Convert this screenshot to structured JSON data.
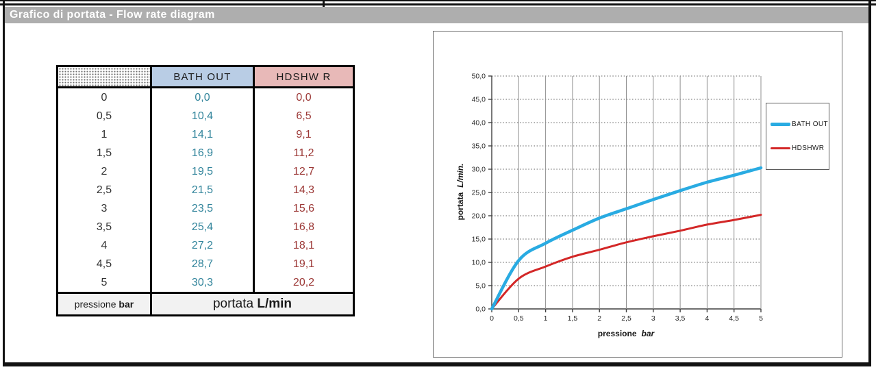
{
  "header": {
    "title": "Grafico di portata - Flow rate diagram"
  },
  "table": {
    "col_headers": [
      "",
      "BATH OUT",
      "HDSHW R"
    ],
    "pressures": [
      "0",
      "0,5",
      "1",
      "1,5",
      "2",
      "2,5",
      "3",
      "3,5",
      "4",
      "4,5",
      "5"
    ],
    "bath_out": [
      "0,0",
      "10,4",
      "14,1",
      "16,9",
      "19,5",
      "21,5",
      "23,5",
      "25,4",
      "27,2",
      "28,7",
      "30,3"
    ],
    "hdshwr": [
      "0,0",
      "6,5",
      "9,1",
      "11,2",
      "12,7",
      "14,3",
      "15,6",
      "16,8",
      "18,1",
      "19,1",
      "20,2"
    ],
    "footer": {
      "pressione_label": "pressione",
      "pressione_unit": "bar",
      "portata_label": "portata",
      "portata_unit": "L/min"
    }
  },
  "chart_data": {
    "type": "line",
    "title": "",
    "x": [
      0,
      0.5,
      1,
      1.5,
      2,
      2.5,
      3,
      3.5,
      4,
      4.5,
      5
    ],
    "series": [
      {
        "name": "BATH OUT",
        "color": "#29abe2",
        "line_width": 4.5,
        "values": [
          0,
          10.4,
          14.1,
          16.9,
          19.5,
          21.5,
          23.5,
          25.4,
          27.2,
          28.7,
          30.3
        ]
      },
      {
        "name": "HDSHWR",
        "color": "#d32727",
        "line_width": 3,
        "values": [
          0,
          6.5,
          9.1,
          11.2,
          12.7,
          14.3,
          15.6,
          16.8,
          18.1,
          19.1,
          20.2
        ]
      }
    ],
    "xlabel": {
      "text": "pressione",
      "unit": "bar"
    },
    "ylabel": {
      "text": "portata",
      "unit": "L/min."
    },
    "xlim": [
      0,
      5
    ],
    "ylim": [
      0,
      50
    ],
    "xtick_step": 0.5,
    "ytick_step": 5,
    "xtick_labels": [
      "0",
      "0,5",
      "1",
      "1,5",
      "2",
      "2,5",
      "3",
      "3,5",
      "4",
      "4,5",
      "5"
    ],
    "ytick_labels": [
      "0,0",
      "5,0",
      "10,0",
      "15,0",
      "20,0",
      "25,0",
      "30,0",
      "35,0",
      "40,0",
      "45,0",
      "50,0"
    ],
    "legend_position": "right",
    "grid": {
      "vertical": "solid",
      "horizontal": "dashed"
    }
  },
  "colors": {
    "title_bar_bg": "#aeaeae",
    "table_header_blue_bg": "#b9cde5",
    "table_header_pink_bg": "#e8b9b8",
    "bath_out_text": "#31849b",
    "hdshwr_text": "#9c3836",
    "footer_bg": "#f2f2f2",
    "page_border": "#121212"
  }
}
